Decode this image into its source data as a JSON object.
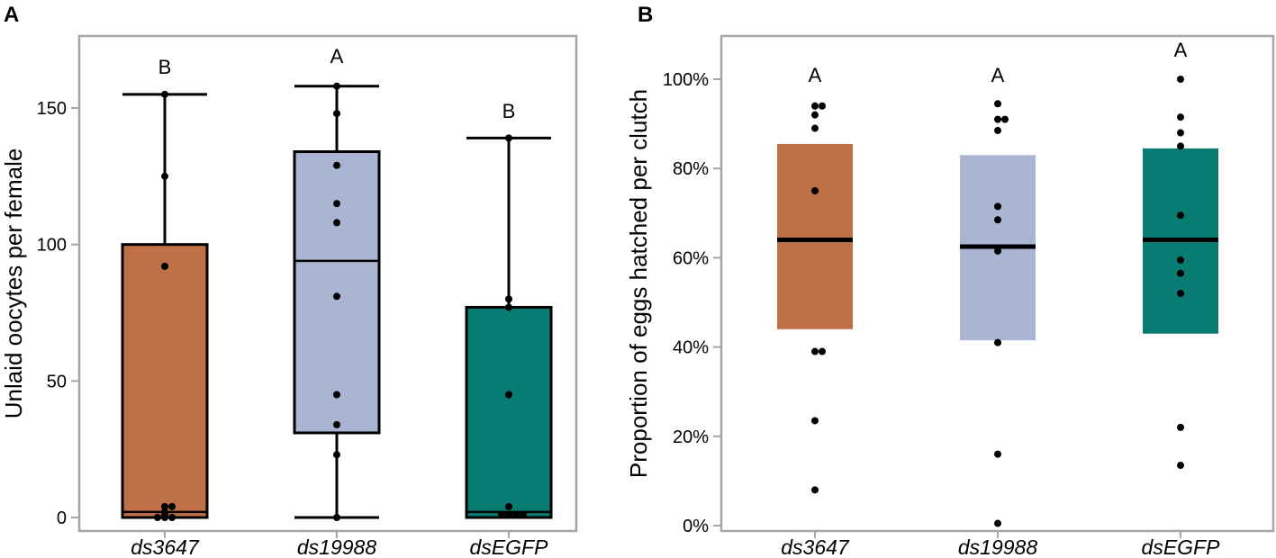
{
  "chart_data": [
    {
      "panel": "A",
      "type": "box",
      "ylabel": "Unlaid oocytes per female",
      "xlabel": "",
      "ylim": [
        -5,
        177
      ],
      "yticks": [
        0,
        50,
        100,
        150
      ],
      "categories": [
        "ds3647",
        "ds19988",
        "dsEGFP"
      ],
      "colors": [
        "#c07046",
        "#a9b5d3",
        "#087b73"
      ],
      "groups": [
        {
          "name": "ds3647",
          "letter": "B",
          "q1": 0,
          "median": 2,
          "q3": 100,
          "whisker_low": 0,
          "whisker_high": 155,
          "points": [
            155,
            125,
            92,
            4,
            4,
            2,
            1,
            0,
            0,
            0
          ]
        },
        {
          "name": "ds19988",
          "letter": "A",
          "q1": 31,
          "median": 94,
          "q3": 134,
          "whisker_low": 0,
          "whisker_high": 158,
          "points": [
            158,
            148,
            129,
            115,
            108,
            81,
            45,
            34,
            23,
            0
          ]
        },
        {
          "name": "dsEGFP",
          "letter": "B",
          "q1": 0,
          "median": 2,
          "q3": 77,
          "whisker_low": 0,
          "whisker_high": 139,
          "points": [
            139,
            80,
            77,
            45,
            4,
            1,
            1,
            1,
            1
          ]
        }
      ]
    },
    {
      "panel": "B",
      "type": "box",
      "ylabel": "Proportion of eggs hatched per clutch",
      "xlabel": "",
      "ylim": [
        -0.02,
        1.1
      ],
      "yticks": [
        0,
        0.2,
        0.4,
        0.6,
        0.8,
        1.0
      ],
      "ytick_labels": [
        "0%",
        "20%",
        "40%",
        "60%",
        "80%",
        "100%"
      ],
      "categories": [
        "ds3647",
        "ds19988",
        "dsEGFP"
      ],
      "colors": [
        "#c07046",
        "#a9b5d3",
        "#087b73"
      ],
      "groups": [
        {
          "name": "ds3647",
          "letter": "A",
          "q1": 0.44,
          "median": 0.64,
          "q3": 0.855,
          "points": [
            0.94,
            0.94,
            0.92,
            0.89,
            0.75,
            0.39,
            0.39,
            0.235,
            0.08
          ]
        },
        {
          "name": "ds19988",
          "letter": "A",
          "q1": 0.415,
          "median": 0.625,
          "q3": 0.83,
          "points": [
            0.945,
            0.91,
            0.91,
            0.885,
            0.715,
            0.685,
            0.615,
            0.41,
            0.16,
            0.005
          ]
        },
        {
          "name": "dsEGFP",
          "letter": "A",
          "q1": 0.43,
          "median": 0.64,
          "q3": 0.845,
          "points": [
            1.0,
            0.915,
            0.88,
            0.85,
            0.695,
            0.595,
            0.565,
            0.52,
            0.22,
            0.135
          ]
        }
      ]
    }
  ]
}
